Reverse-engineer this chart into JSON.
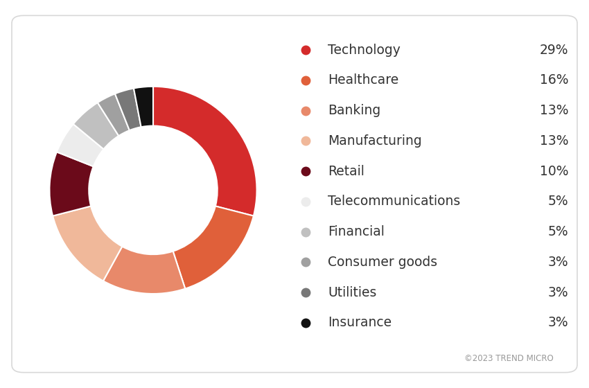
{
  "labels": [
    "Technology",
    "Healthcare",
    "Banking",
    "Manufacturing",
    "Retail",
    "Telecommunications",
    "Financial",
    "Consumer goods",
    "Utilities",
    "Insurance"
  ],
  "values": [
    29,
    16,
    13,
    13,
    10,
    5,
    5,
    3,
    3,
    3
  ],
  "colors": [
    "#d42b2b",
    "#e0603a",
    "#e8896a",
    "#f0b89a",
    "#6b0a1a",
    "#ececec",
    "#c0c0c0",
    "#a0a0a0",
    "#787878",
    "#111111"
  ],
  "percentages": [
    "29%",
    "16%",
    "13%",
    "13%",
    "10%",
    "5%",
    "5%",
    "3%",
    "3%",
    "3%"
  ],
  "background_color": "#ffffff",
  "border_color": "#d8d8d8",
  "text_color": "#333333",
  "copyright_text": "©2023 TREND MICRO",
  "donut_width": 0.38
}
